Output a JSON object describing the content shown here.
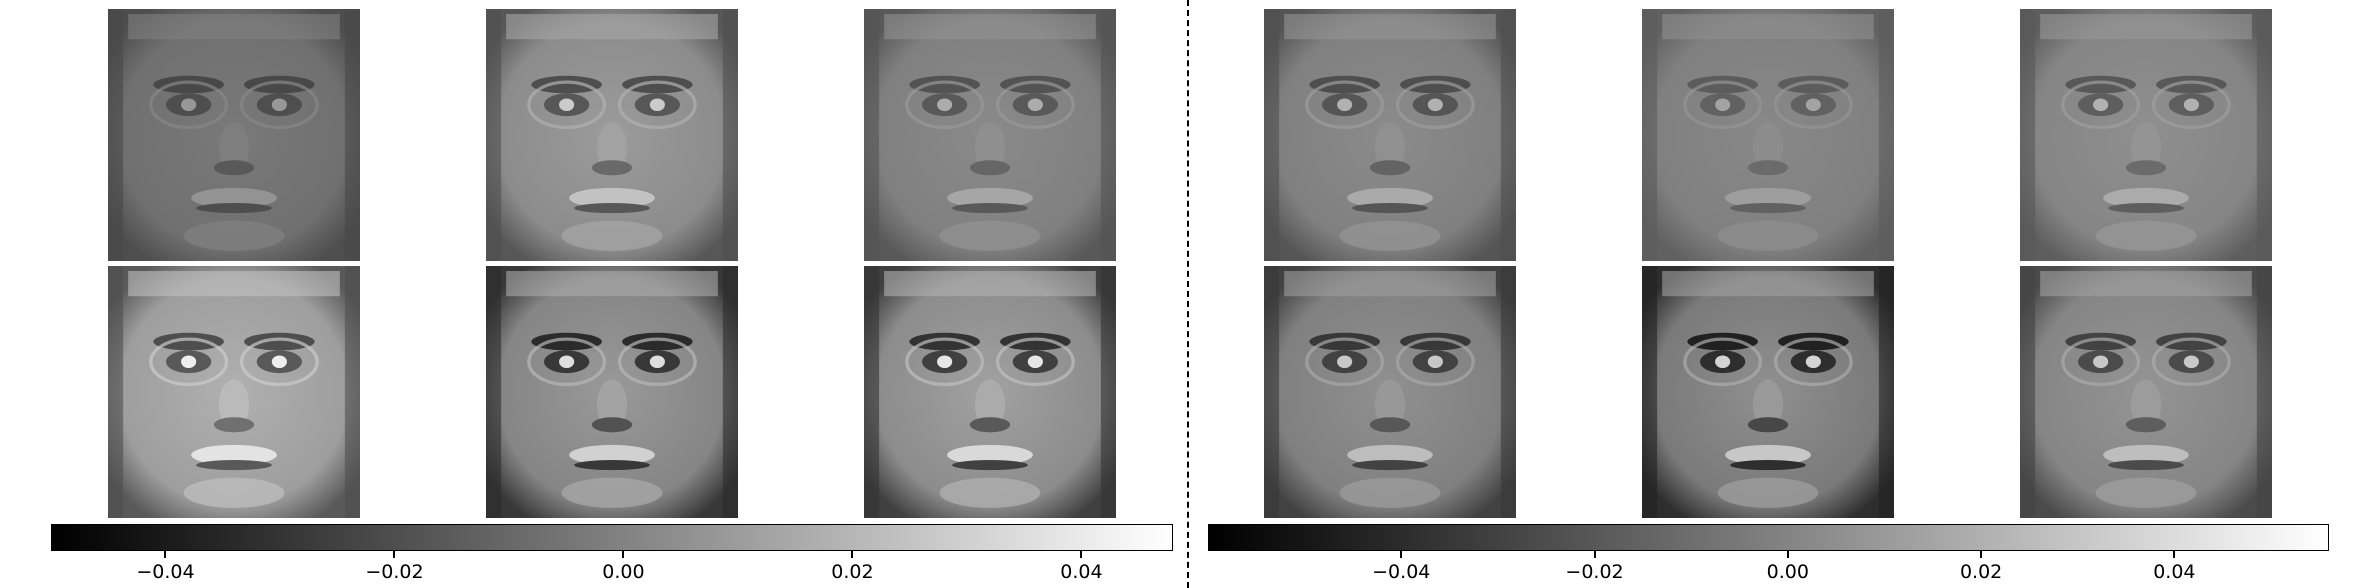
{
  "figure": {
    "colormap": "gray",
    "panels": [
      {
        "faces": [
          {
            "tone": 0.44,
            "contrast": 0.45
          },
          {
            "tone": 0.55,
            "contrast": 0.7
          },
          {
            "tone": 0.5,
            "contrast": 0.5
          },
          {
            "tone": 0.62,
            "contrast": 0.9
          },
          {
            "tone": 0.52,
            "contrast": 1.0
          },
          {
            "tone": 0.55,
            "contrast": 1.0
          }
        ],
        "colorbar": {
          "range": [
            -0.05,
            0.048
          ],
          "ticks": [
            {
              "value": -0.04,
              "label": "−0.04"
            },
            {
              "value": -0.02,
              "label": "−0.02"
            },
            {
              "value": 0.0,
              "label": "0.00"
            },
            {
              "value": 0.02,
              "label": "0.02"
            },
            {
              "value": 0.04,
              "label": "0.04"
            }
          ]
        }
      },
      {
        "faces": [
          {
            "tone": 0.5,
            "contrast": 0.55
          },
          {
            "tone": 0.5,
            "contrast": 0.4
          },
          {
            "tone": 0.52,
            "contrast": 0.5
          },
          {
            "tone": 0.5,
            "contrast": 0.8
          },
          {
            "tone": 0.48,
            "contrast": 1.0
          },
          {
            "tone": 0.52,
            "contrast": 0.75
          }
        ],
        "colorbar": {
          "range": [
            -0.06,
            0.056
          ],
          "ticks": [
            {
              "value": -0.04,
              "label": "−0.04"
            },
            {
              "value": -0.02,
              "label": "−0.02"
            },
            {
              "value": 0.0,
              "label": "0.00"
            },
            {
              "value": 0.02,
              "label": "0.02"
            },
            {
              "value": 0.04,
              "label": "0.04"
            }
          ]
        }
      }
    ]
  }
}
